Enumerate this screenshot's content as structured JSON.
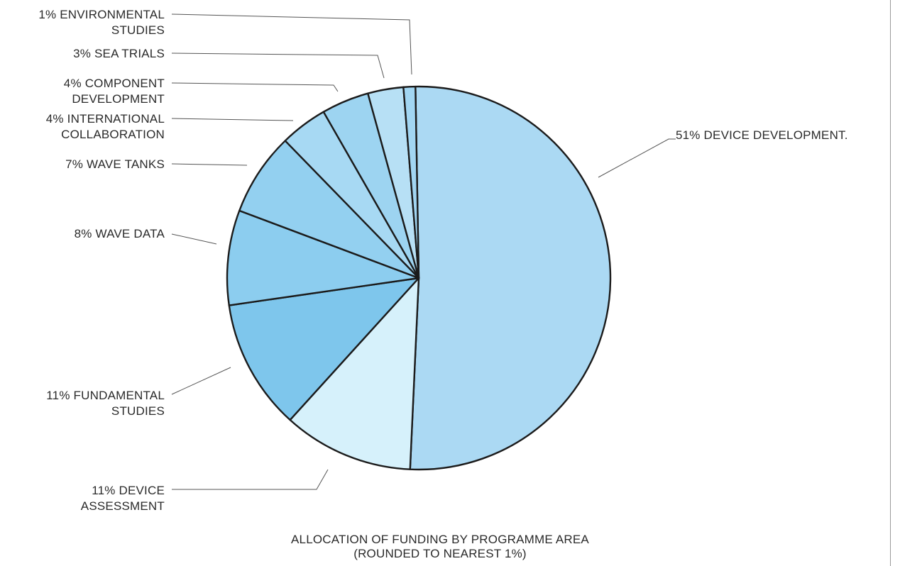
{
  "chart_data": {
    "type": "pie",
    "title": "ALLOCATION OF FUNDING BY PROGRAMME AREA",
    "subtitle": "(ROUNDED TO NEAREST 1%)",
    "slices": [
      {
        "label": "51% DEVICE DEVELOPMENT.",
        "value": 51,
        "color": "#abd9f3"
      },
      {
        "label": "11% DEVICE ASSESSMENT",
        "value": 11,
        "color": "#d6f1fb"
      },
      {
        "label": "11% FUNDAMENTAL STUDIES",
        "value": 11,
        "color": "#7ec6ec"
      },
      {
        "label": "8% WAVE DATA",
        "value": 8,
        "color": "#8ccdef"
      },
      {
        "label": "7% WAVE TANKS",
        "value": 7,
        "color": "#93d0f0"
      },
      {
        "label": "4% INTERNATIONAL COLLABORATION",
        "value": 4,
        "color": "#a7d9f3"
      },
      {
        "label": "4% COMPONENT DEVELOPMENT",
        "value": 4,
        "color": "#9dd4f1"
      },
      {
        "label": "3% SEA TRIALS",
        "value": 3,
        "color": "#b7e0f5"
      },
      {
        "label": "1% ENVIRONMENTAL STUDIES",
        "value": 1,
        "color": "#a2d6f2"
      }
    ],
    "label_lines": [
      [
        "51% DEVICE DEVELOPMENT."
      ],
      [
        "11% DEVICE",
        "ASSESSMENT"
      ],
      [
        "11% FUNDAMENTAL",
        "STUDIES"
      ],
      [
        "8% WAVE DATA"
      ],
      [
        "7% WAVE TANKS"
      ],
      [
        "4% INTERNATIONAL",
        "COLLABORATION"
      ],
      [
        "4% COMPONENT",
        "DEVELOPMENT"
      ],
      [
        "3% SEA TRIALS"
      ],
      [
        "1% ENVIRONMENTAL",
        "STUDIES"
      ]
    ],
    "legend": "none"
  }
}
